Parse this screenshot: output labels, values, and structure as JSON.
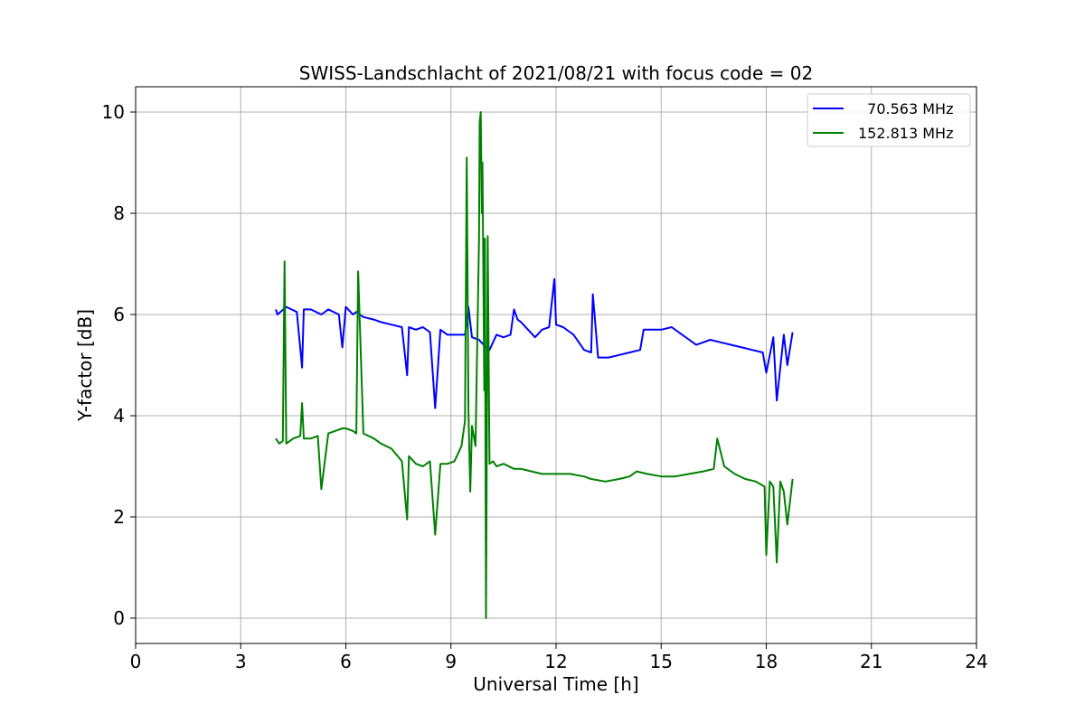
{
  "chart_data": {
    "type": "line",
    "title": "SWISS-Landschlacht of 2021/08/21 with focus code = 02",
    "xlabel": "Universal Time [h]",
    "ylabel": "Y-factor [dB]",
    "xlim": [
      0,
      24
    ],
    "ylim": [
      -0.5,
      10.5
    ],
    "xticks": [
      0,
      3,
      6,
      9,
      12,
      15,
      18,
      21,
      24
    ],
    "yticks": [
      0,
      2,
      4,
      6,
      8,
      10
    ],
    "grid": true,
    "legend_position": "top-right",
    "series": [
      {
        "name": "  70.563 MHz",
        "color": "#0000ff",
        "x": [
          4.0,
          4.05,
          4.3,
          4.6,
          4.75,
          4.8,
          5.0,
          5.3,
          5.5,
          5.8,
          5.9,
          6.0,
          6.2,
          6.3,
          6.5,
          6.8,
          7.0,
          7.3,
          7.6,
          7.75,
          7.8,
          8.0,
          8.2,
          8.4,
          8.55,
          8.7,
          8.9,
          9.1,
          9.4,
          9.5,
          9.6,
          9.8,
          10.0,
          10.1,
          10.3,
          10.5,
          10.7,
          10.8,
          10.9,
          11.0,
          11.2,
          11.4,
          11.6,
          11.8,
          11.95,
          12.0,
          12.2,
          12.5,
          12.8,
          13.0,
          13.05,
          13.2,
          13.5,
          13.8,
          14.1,
          14.4,
          14.5,
          14.7,
          15.0,
          15.3,
          15.6,
          15.8,
          16.0,
          16.2,
          16.4,
          16.7,
          17.0,
          17.3,
          17.6,
          17.9,
          18.0,
          18.2,
          18.3,
          18.5,
          18.6,
          18.75
        ],
        "y": [
          6.1,
          6.0,
          6.15,
          6.05,
          4.95,
          6.1,
          6.1,
          6.0,
          6.1,
          6.0,
          5.35,
          6.15,
          6.0,
          6.05,
          5.95,
          5.9,
          5.85,
          5.8,
          5.75,
          4.8,
          5.75,
          5.7,
          5.75,
          5.65,
          4.15,
          5.7,
          5.6,
          5.6,
          5.6,
          6.15,
          5.55,
          5.5,
          5.35,
          5.3,
          5.6,
          5.55,
          5.6,
          6.1,
          5.9,
          5.85,
          5.7,
          5.55,
          5.7,
          5.75,
          6.7,
          5.8,
          5.75,
          5.6,
          5.3,
          5.25,
          6.4,
          5.15,
          5.15,
          5.2,
          5.25,
          5.3,
          5.7,
          5.7,
          5.7,
          5.75,
          5.6,
          5.5,
          5.4,
          5.45,
          5.5,
          5.45,
          5.4,
          5.35,
          5.3,
          5.25,
          4.85,
          5.55,
          4.3,
          5.6,
          5.0,
          5.65
        ]
      },
      {
        "name": "152.813 MHz",
        "color": "#008000",
        "x": [
          4.0,
          4.1,
          4.2,
          4.25,
          4.3,
          4.5,
          4.7,
          4.75,
          4.8,
          5.0,
          5.2,
          5.3,
          5.5,
          5.7,
          5.9,
          6.0,
          6.2,
          6.3,
          6.35,
          6.5,
          6.8,
          7.0,
          7.3,
          7.6,
          7.75,
          7.8,
          8.0,
          8.2,
          8.4,
          8.55,
          8.7,
          8.9,
          9.1,
          9.3,
          9.4,
          9.45,
          9.5,
          9.55,
          9.6,
          9.7,
          9.8,
          9.82,
          9.85,
          9.88,
          9.9,
          9.95,
          9.97,
          10.0,
          10.02,
          10.05,
          10.1,
          10.2,
          10.3,
          10.5,
          10.8,
          11.0,
          11.3,
          11.6,
          12.0,
          12.4,
          12.8,
          13.0,
          13.4,
          13.8,
          14.1,
          14.3,
          14.6,
          15.0,
          15.4,
          15.8,
          16.2,
          16.5,
          16.6,
          16.8,
          17.1,
          17.4,
          17.7,
          17.95,
          18.0,
          18.1,
          18.2,
          18.3,
          18.4,
          18.5,
          18.6,
          18.75
        ],
        "y": [
          3.55,
          3.45,
          3.5,
          7.05,
          3.45,
          3.55,
          3.6,
          4.25,
          3.55,
          3.55,
          3.6,
          2.55,
          3.65,
          3.7,
          3.75,
          3.75,
          3.7,
          3.65,
          6.85,
          3.65,
          3.55,
          3.45,
          3.35,
          3.1,
          1.95,
          3.2,
          3.05,
          3.0,
          3.1,
          1.65,
          3.05,
          3.05,
          3.1,
          3.4,
          3.9,
          9.1,
          4.1,
          2.5,
          3.8,
          3.4,
          7.5,
          9.8,
          10.0,
          8.0,
          9.0,
          4.5,
          7.5,
          0.0,
          3.0,
          7.55,
          3.05,
          3.1,
          3.0,
          3.05,
          2.95,
          2.95,
          2.9,
          2.85,
          2.85,
          2.85,
          2.8,
          2.75,
          2.7,
          2.75,
          2.8,
          2.9,
          2.85,
          2.8,
          2.8,
          2.85,
          2.9,
          2.95,
          3.55,
          3.0,
          2.85,
          2.75,
          2.7,
          2.6,
          1.25,
          2.7,
          2.6,
          1.1,
          2.7,
          2.5,
          1.85,
          2.75
        ]
      }
    ]
  }
}
